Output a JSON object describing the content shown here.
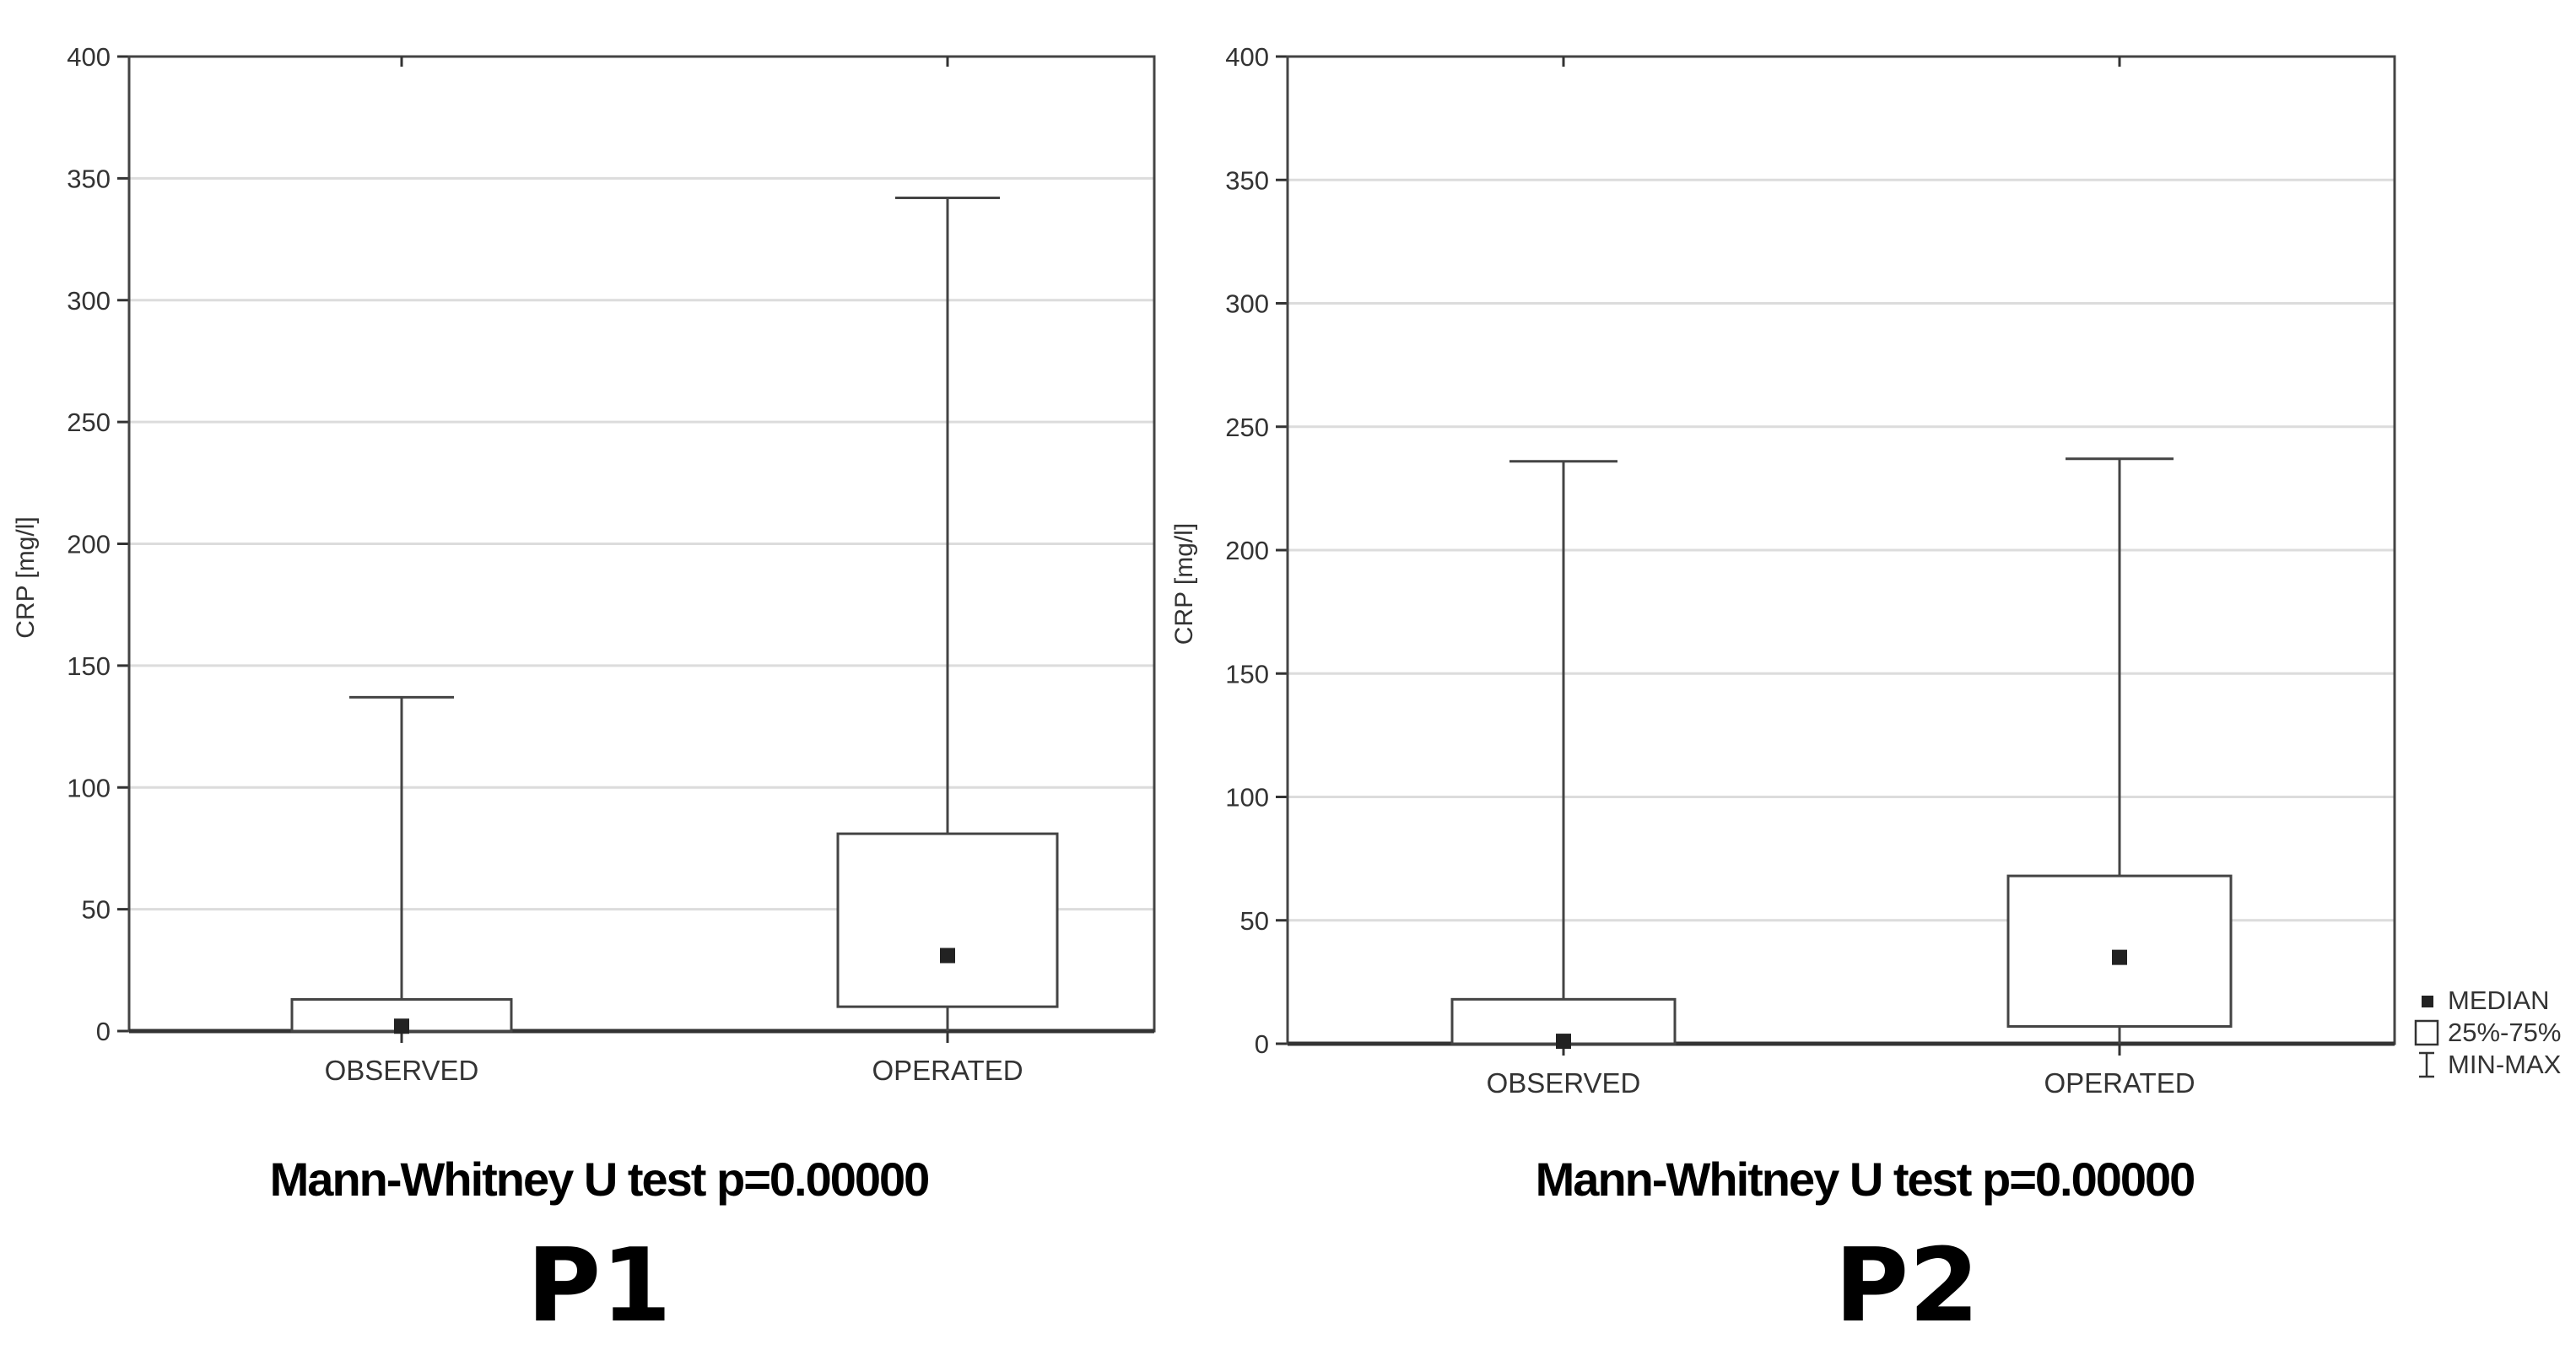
{
  "chart_data": [
    {
      "type": "boxplot",
      "ylabel": "CRP [mg/l]",
      "ylim": [
        0,
        400
      ],
      "yticks": [
        0,
        50,
        100,
        150,
        200,
        250,
        300,
        350,
        400
      ],
      "grid": true,
      "categories": [
        "OBSERVED",
        "OPERATED"
      ],
      "boxes": [
        {
          "category": "OBSERVED",
          "min": 0,
          "q1": 0,
          "median": 2,
          "q3": 13,
          "max": 137
        },
        {
          "category": "OPERATED",
          "min": 0,
          "q1": 10,
          "median": 31,
          "q3": 81,
          "max": 342
        }
      ],
      "test_caption": "Mann-Whitney U test p=0.00000",
      "panel_label": "P1"
    },
    {
      "type": "boxplot",
      "ylabel": "CRP [mg/l]",
      "ylim": [
        0,
        400
      ],
      "yticks": [
        0,
        50,
        100,
        150,
        200,
        250,
        300,
        350,
        400
      ],
      "grid": true,
      "categories": [
        "OBSERVED",
        "OPERATED"
      ],
      "boxes": [
        {
          "category": "OBSERVED",
          "min": 0,
          "q1": 0,
          "median": 1,
          "q3": 18,
          "max": 236
        },
        {
          "category": "OPERATED",
          "min": 0,
          "q1": 7,
          "median": 35,
          "q3": 68,
          "max": 237
        }
      ],
      "legend": {
        "position": "right-bottom",
        "entries": [
          {
            "symbol": "square-filled",
            "label": "MEDIAN"
          },
          {
            "symbol": "square-open",
            "label": "25%-75%"
          },
          {
            "symbol": "whisker",
            "label": "MIN-MAX"
          }
        ]
      },
      "test_caption": "Mann-Whitney U test p=0.00000",
      "panel_label": "P2"
    }
  ]
}
